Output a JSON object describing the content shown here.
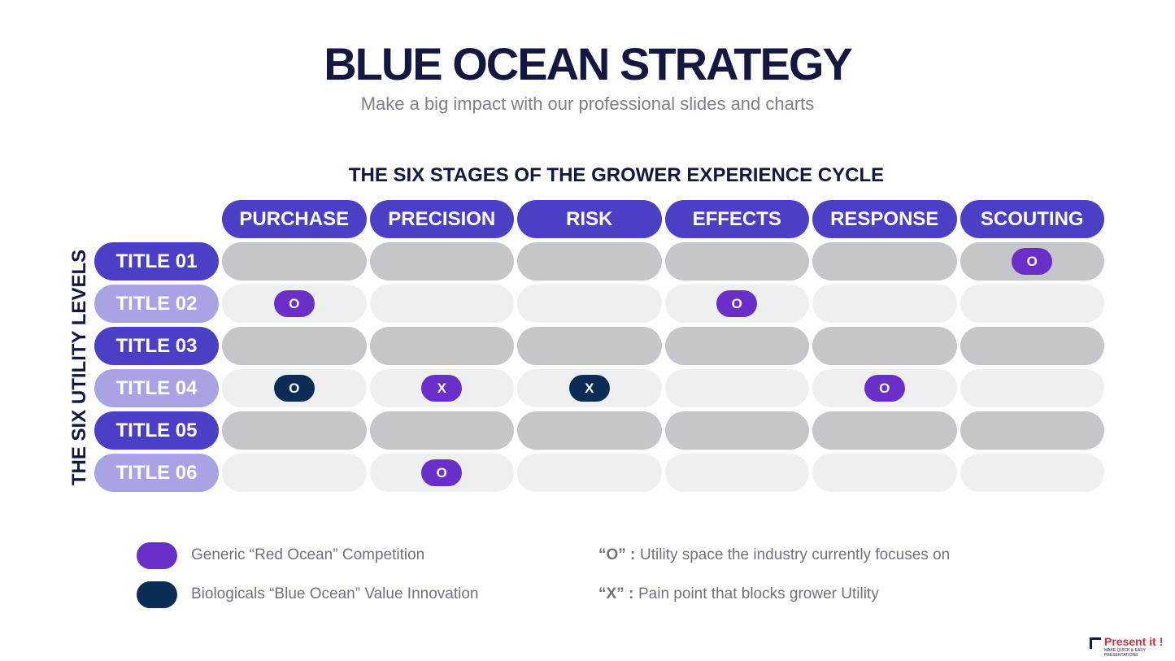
{
  "header": {
    "title": "BLUE OCEAN STRATEGY",
    "subtitle": "Make a big impact with our professional slides and charts"
  },
  "grid": {
    "title": "THE SIX STAGES OF THE GROWER EXPERIENCE CYCLE",
    "row_axis_label": "THE SIX UTILITY LEVELS",
    "columns": [
      "PURCHASE",
      "PRECISION",
      "RISK",
      "EFFECTS",
      "RESPONSE",
      "SCOUTING"
    ],
    "rows": [
      {
        "label": "TITLE 01",
        "cells": [
          null,
          null,
          null,
          null,
          null,
          {
            "text": "O",
            "color": "#6a2fc9"
          }
        ]
      },
      {
        "label": "TITLE 02",
        "cells": [
          {
            "text": "O",
            "color": "#6a2fc9"
          },
          null,
          null,
          {
            "text": "O",
            "color": "#6a2fc9"
          },
          null,
          null
        ]
      },
      {
        "label": "TITLE 03",
        "cells": [
          null,
          null,
          null,
          null,
          null,
          null
        ]
      },
      {
        "label": "TITLE 04",
        "cells": [
          {
            "text": "O",
            "color": "#0b2d55"
          },
          {
            "text": "X",
            "color": "#6a2fc9"
          },
          {
            "text": "X",
            "color": "#0b2d55"
          },
          null,
          {
            "text": "O",
            "color": "#6a2fc9"
          },
          null
        ]
      },
      {
        "label": "TITLE 05",
        "cells": [
          null,
          null,
          null,
          null,
          null,
          null
        ]
      },
      {
        "label": "TITLE 06",
        "cells": [
          null,
          {
            "text": "O",
            "color": "#6a2fc9"
          },
          null,
          null,
          null,
          null
        ]
      }
    ]
  },
  "legend": [
    {
      "text": "Generic “Red Ocean” Competition",
      "color": "#6a2fc9"
    },
    {
      "text": "Biologicals “Blue Ocean”  Value Innovation",
      "color": "#0b2d55"
    }
  ],
  "notes": [
    {
      "key": "“O” :",
      "text": "Utility space the industry currently focuses on"
    },
    {
      "key": "“X” :",
      "text": "Pain point that blocks grower Utility"
    }
  ],
  "logo": {
    "name": "Present it !",
    "tagline": "MAKE QUICK & EASY PRESENTATIONS"
  }
}
